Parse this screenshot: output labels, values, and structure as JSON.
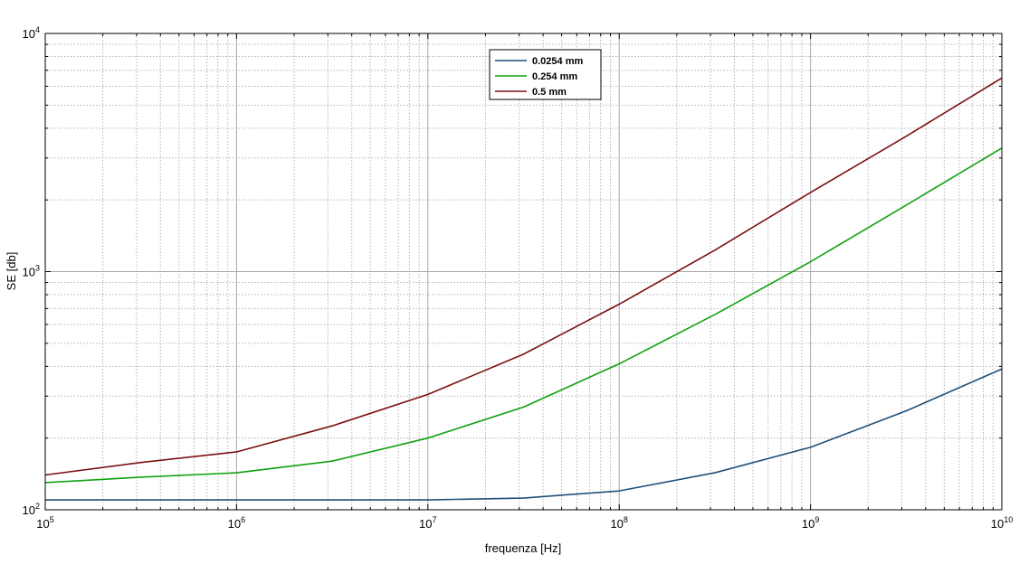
{
  "chart_data": {
    "type": "line",
    "title": "",
    "xlabel": "frequenza [Hz]",
    "ylabel": "SE [db]",
    "xscale": "log",
    "yscale": "log",
    "xlim": [
      100000,
      10000000000
    ],
    "ylim": [
      100,
      10000
    ],
    "grid": true,
    "legend_position": "top-center",
    "x_ticks": [
      {
        "base": "10",
        "exp": "5",
        "value": 100000
      },
      {
        "base": "10",
        "exp": "6",
        "value": 1000000
      },
      {
        "base": "10",
        "exp": "7",
        "value": 10000000
      },
      {
        "base": "10",
        "exp": "8",
        "value": 100000000
      },
      {
        "base": "10",
        "exp": "9",
        "value": 1000000000
      },
      {
        "base": "10",
        "exp": "10",
        "value": 10000000000
      }
    ],
    "y_ticks": [
      {
        "base": "10",
        "exp": "2",
        "value": 100
      },
      {
        "base": "10",
        "exp": "3",
        "value": 1000
      },
      {
        "base": "10",
        "exp": "4",
        "value": 10000
      }
    ],
    "series": [
      {
        "name": "0.0254 mm",
        "color": "#1f4f7a",
        "points": [
          [
            100000,
            110
          ],
          [
            1000000,
            110
          ],
          [
            10000000,
            110
          ],
          [
            31600000,
            112
          ],
          [
            100000000,
            120
          ],
          [
            316000000,
            143
          ],
          [
            1000000000,
            183
          ],
          [
            3160000000,
            260
          ],
          [
            10000000000,
            390
          ]
        ]
      },
      {
        "name": "0.254 mm",
        "color": "#10a010",
        "points": [
          [
            100000,
            130
          ],
          [
            316000,
            137
          ],
          [
            1000000,
            143
          ],
          [
            3160000,
            160
          ],
          [
            10000000,
            200
          ],
          [
            31600000,
            270
          ],
          [
            100000000,
            410
          ],
          [
            316000000,
            660
          ],
          [
            1000000000,
            1100
          ],
          [
            3160000000,
            1900
          ],
          [
            10000000000,
            3300
          ]
        ]
      },
      {
        "name": "0.5 mm",
        "color": "#7a1010",
        "points": [
          [
            100000,
            140
          ],
          [
            316000,
            158
          ],
          [
            1000000,
            175
          ],
          [
            3160000,
            225
          ],
          [
            10000000,
            305
          ],
          [
            31600000,
            450
          ],
          [
            100000000,
            730
          ],
          [
            316000000,
            1230
          ],
          [
            1000000000,
            2150
          ],
          [
            3160000000,
            3700
          ],
          [
            10000000000,
            6500
          ]
        ]
      }
    ]
  }
}
